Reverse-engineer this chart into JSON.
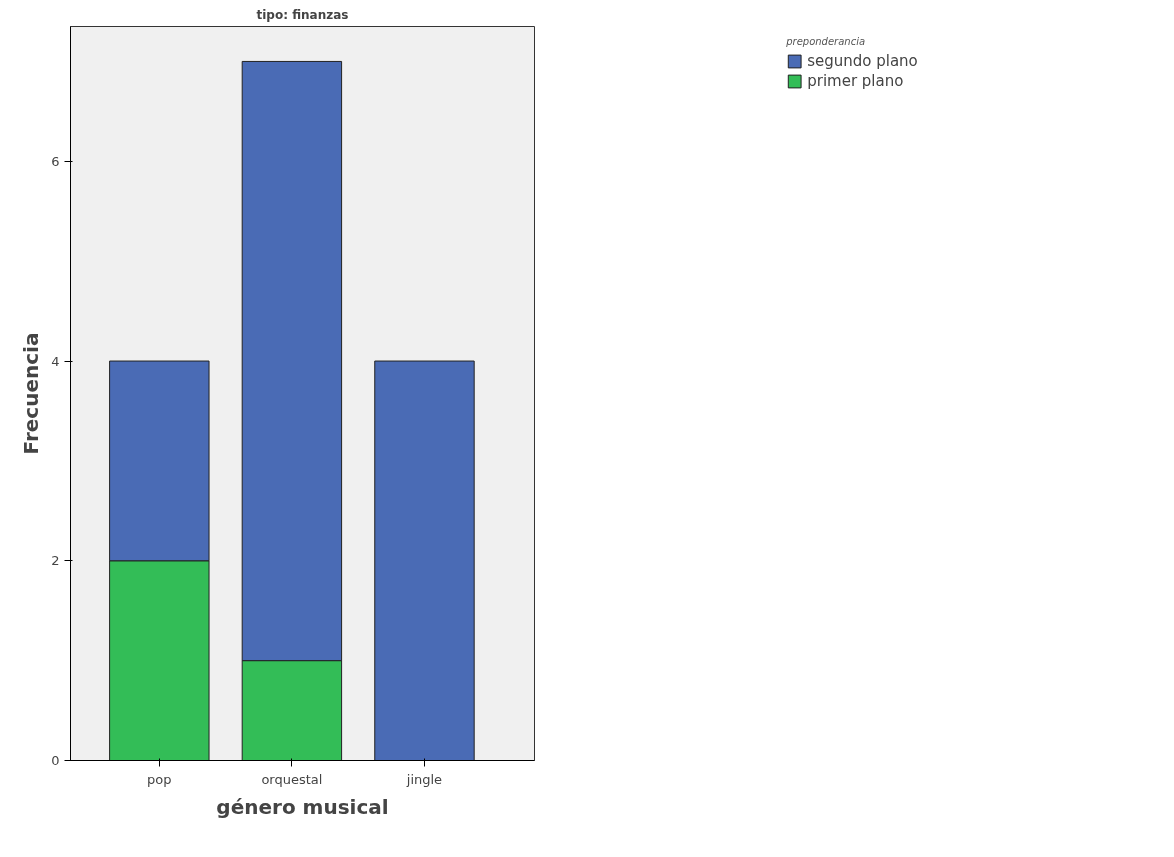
{
  "chart_data": {
    "type": "bar",
    "title": "tipo: finanzas",
    "xlabel": "género musical",
    "ylabel": "Frecuencia",
    "legend_title": "preponderancia",
    "categories": [
      "pop",
      "orquestal",
      "jingle"
    ],
    "stacked": true,
    "series": [
      {
        "name": "primer plano",
        "color": "#33bd57",
        "values": [
          2,
          1,
          0
        ]
      },
      {
        "name": "segundo plano",
        "color": "#4a6bb5",
        "values": [
          2,
          6,
          4
        ]
      }
    ],
    "ylim": [
      0,
      7.35
    ],
    "yticks": [
      0,
      2,
      4,
      6
    ],
    "grid": false,
    "legend": "top right"
  }
}
